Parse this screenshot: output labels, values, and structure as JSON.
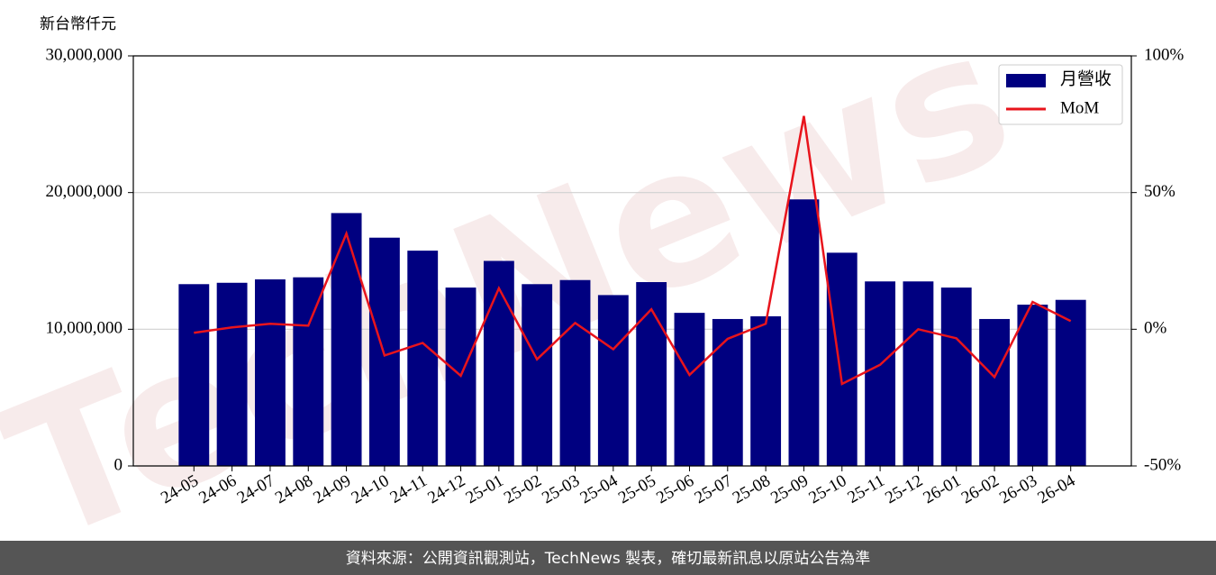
{
  "chart_data": {
    "type": "bar_line",
    "y_label": "新台幣仟元",
    "categories": [
      "24-05",
      "24-06",
      "24-07",
      "24-08",
      "24-09",
      "24-10",
      "24-11",
      "24-12",
      "25-01",
      "25-02",
      "25-03",
      "25-04",
      "25-05",
      "25-06",
      "25-07",
      "25-08",
      "25-09",
      "25-10",
      "25-11",
      "25-12",
      "26-01",
      "26-02",
      "26-03",
      "26-04"
    ],
    "series": [
      {
        "name": "月營收",
        "type": "bar",
        "color": "#000080",
        "values": [
          13300000,
          13400000,
          13650000,
          13800000,
          18500000,
          16700000,
          15750000,
          13050000,
          15000000,
          13300000,
          13600000,
          12500000,
          13450000,
          11200000,
          10750000,
          10950000,
          19500000,
          15600000,
          13500000,
          13500000,
          13050000,
          10750000,
          11800000,
          12150000
        ]
      },
      {
        "name": "MoM",
        "type": "line",
        "axis": "y2",
        "color": "#e8141c",
        "values": [
          -1.3,
          0.7,
          2,
          1.3,
          35,
          -9.6,
          -5,
          -17,
          15,
          -11,
          2.3,
          -7.3,
          7.3,
          -16.7,
          -3.5,
          2,
          78,
          -20,
          -13,
          0,
          -3.3,
          -17.5,
          10,
          3
        ]
      }
    ],
    "ylim": [
      0,
      30000000
    ],
    "yticks": [
      0,
      {
        "value": 10000000,
        "label": "10,000,000"
      },
      {
        "value": 20000000,
        "label": "20,000,000"
      },
      {
        "value": 30000000,
        "label": "30,000,000"
      }
    ],
    "y2lim": [
      -50,
      100
    ],
    "y2ticks": [
      {
        "value": -50,
        "label": "-50%"
      },
      {
        "value": 0,
        "label": "0%"
      },
      {
        "value": 50,
        "label": "50%"
      },
      {
        "value": 100,
        "label": "100%"
      }
    ],
    "grid": true,
    "legend": "upper-right",
    "watermark": "TechNews",
    "footer": "資料來源：公開資訊觀測站，TechNews 製表，確切最新訊息以原站公告為準"
  }
}
